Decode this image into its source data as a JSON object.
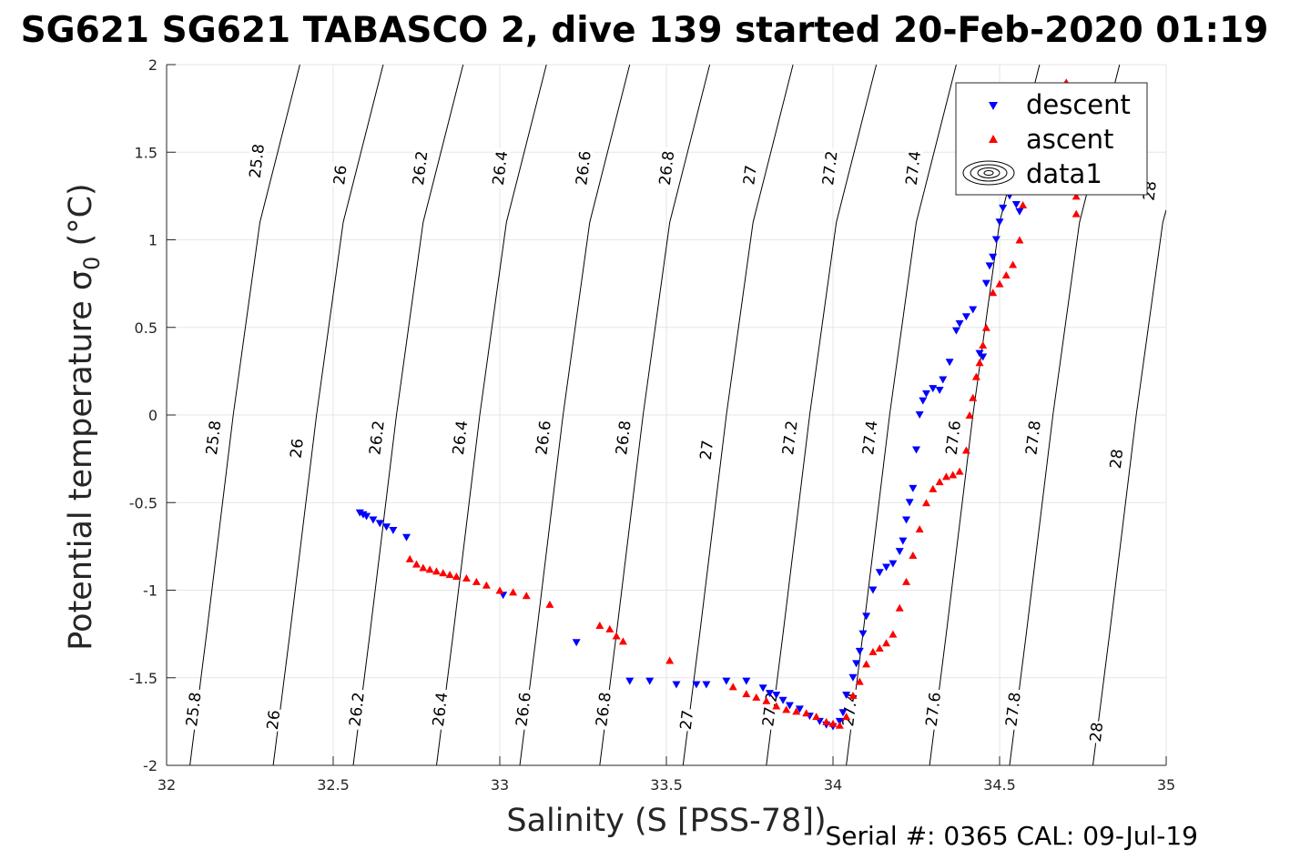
{
  "chart_data": {
    "type": "scatter",
    "title": "SG621 SG621 TABASCO 2, dive 139 started 20-Feb-2020 01:19",
    "xlabel": "Salinity (S [PSS-78])",
    "ylabel": "Potential temperature σ",
    "ylabel_sub": "0",
    "ylabel_unit": " (°C)",
    "xlim": [
      32,
      35
    ],
    "ylim": [
      -2,
      2
    ],
    "xticks": [
      32,
      32.5,
      33,
      33.5,
      34,
      34.5,
      35
    ],
    "xtick_labels": [
      "32",
      "32.5",
      "33",
      "33.5",
      "34",
      "34.5",
      "35"
    ],
    "yticks": [
      -2,
      -1.5,
      -1,
      -0.5,
      0,
      0.5,
      1,
      1.5,
      2
    ],
    "ytick_labels": [
      "-2",
      "-1.5",
      "-1",
      "-0.5",
      "0",
      "0.5",
      "1",
      "1.5",
      "2"
    ],
    "grid": true,
    "legend": {
      "placement": "top-right",
      "entries": [
        "descent",
        "ascent",
        "data1"
      ]
    },
    "footer": "Serial #: 0365  CAL: 09-Jul-19",
    "colors": {
      "descent": "#0000ff",
      "ascent": "#ff0000",
      "contour": "#000000",
      "grid": "#e5e5e5"
    },
    "density_contours": [
      {
        "level": "25.8",
        "points": [
          [
            32.07,
            -2
          ],
          [
            32.12,
            -1.25
          ],
          [
            32.2,
            0
          ],
          [
            32.28,
            1.1
          ],
          [
            32.4,
            2
          ]
        ]
      },
      {
        "level": "26",
        "points": [
          [
            32.32,
            -2
          ],
          [
            32.37,
            -1.25
          ],
          [
            32.45,
            0
          ],
          [
            32.53,
            1.1
          ],
          [
            32.65,
            2
          ]
        ]
      },
      {
        "level": "26.2",
        "points": [
          [
            32.56,
            -2
          ],
          [
            32.61,
            -1.25
          ],
          [
            32.69,
            0
          ],
          [
            32.77,
            1.1
          ],
          [
            32.89,
            2
          ]
        ]
      },
      {
        "level": "26.4",
        "points": [
          [
            32.81,
            -2
          ],
          [
            32.86,
            -1.25
          ],
          [
            32.94,
            0
          ],
          [
            33.02,
            1.1
          ],
          [
            33.14,
            2
          ]
        ]
      },
      {
        "level": "26.6",
        "points": [
          [
            33.06,
            -2
          ],
          [
            33.11,
            -1.25
          ],
          [
            33.19,
            0
          ],
          [
            33.27,
            1.1
          ],
          [
            33.39,
            2
          ]
        ]
      },
      {
        "level": "26.8",
        "points": [
          [
            33.3,
            -2
          ],
          [
            33.35,
            -1.25
          ],
          [
            33.43,
            0
          ],
          [
            33.51,
            1.1
          ],
          [
            33.63,
            2
          ]
        ]
      },
      {
        "level": "27",
        "points": [
          [
            33.55,
            -2
          ],
          [
            33.6,
            -1.25
          ],
          [
            33.68,
            0
          ],
          [
            33.76,
            1.1
          ],
          [
            33.88,
            2
          ]
        ]
      },
      {
        "level": "27.2",
        "points": [
          [
            33.8,
            -2
          ],
          [
            33.85,
            -1.25
          ],
          [
            33.93,
            0
          ],
          [
            34.01,
            1.1
          ],
          [
            34.13,
            2
          ]
        ]
      },
      {
        "level": "27.4",
        "points": [
          [
            34.04,
            -2
          ],
          [
            34.09,
            -1.25
          ],
          [
            34.17,
            0
          ],
          [
            34.25,
            1.1
          ],
          [
            34.37,
            2
          ]
        ]
      },
      {
        "level": "27.6",
        "points": [
          [
            34.29,
            -2
          ],
          [
            34.34,
            -1.25
          ],
          [
            34.42,
            0
          ],
          [
            34.5,
            1.1
          ],
          [
            34.62,
            2
          ]
        ]
      },
      {
        "level": "27.8",
        "points": [
          [
            34.53,
            -2
          ],
          [
            34.58,
            -1.25
          ],
          [
            34.66,
            0
          ],
          [
            34.74,
            1.1
          ],
          [
            34.86,
            2
          ]
        ]
      },
      {
        "level": "28",
        "points": [
          [
            34.78,
            -2
          ],
          [
            34.83,
            -1.25
          ],
          [
            34.91,
            0
          ],
          [
            34.99,
            1.1
          ],
          [
            35,
            1.17
          ]
        ]
      }
    ],
    "contour_labels": [
      {
        "text": "25.8",
        "x": 32.27,
        "y": 1.45
      },
      {
        "text": "26",
        "x": 32.52,
        "y": 1.37
      },
      {
        "text": "26.2",
        "x": 32.76,
        "y": 1.41
      },
      {
        "text": "26.4",
        "x": 33.0,
        "y": 1.41
      },
      {
        "text": "26.6",
        "x": 33.25,
        "y": 1.41
      },
      {
        "text": "26.8",
        "x": 33.5,
        "y": 1.41
      },
      {
        "text": "27",
        "x": 33.75,
        "y": 1.37
      },
      {
        "text": "27.2",
        "x": 33.99,
        "y": 1.41
      },
      {
        "text": "27.4",
        "x": 34.24,
        "y": 1.41
      },
      {
        "text": "28",
        "x": 34.95,
        "y": 1.28
      },
      {
        "text": "25.8",
        "x": 32.14,
        "y": -0.13
      },
      {
        "text": "26",
        "x": 32.39,
        "y": -0.19
      },
      {
        "text": "26.2",
        "x": 32.63,
        "y": -0.13
      },
      {
        "text": "26.4",
        "x": 32.88,
        "y": -0.13
      },
      {
        "text": "26.6",
        "x": 33.13,
        "y": -0.13
      },
      {
        "text": "26.8",
        "x": 33.37,
        "y": -0.13
      },
      {
        "text": "27",
        "x": 33.62,
        "y": -0.2
      },
      {
        "text": "27.2",
        "x": 33.87,
        "y": -0.13
      },
      {
        "text": "27.4",
        "x": 34.11,
        "y": -0.13
      },
      {
        "text": "27.6",
        "x": 34.36,
        "y": -0.13
      },
      {
        "text": "27.8",
        "x": 34.6,
        "y": -0.13
      },
      {
        "text": "28",
        "x": 34.85,
        "y": -0.25
      },
      {
        "text": "25.8",
        "x": 32.08,
        "y": -1.68
      },
      {
        "text": "26",
        "x": 32.32,
        "y": -1.74
      },
      {
        "text": "26.2",
        "x": 32.57,
        "y": -1.68
      },
      {
        "text": "26.4",
        "x": 32.82,
        "y": -1.68
      },
      {
        "text": "26.6",
        "x": 33.07,
        "y": -1.68
      },
      {
        "text": "26.8",
        "x": 33.31,
        "y": -1.68
      },
      {
        "text": "27",
        "x": 33.56,
        "y": -1.74
      },
      {
        "text": "27.2",
        "x": 33.81,
        "y": -1.68
      },
      {
        "text": "27.4",
        "x": 34.05,
        "y": -1.68
      },
      {
        "text": "27.6",
        "x": 34.3,
        "y": -1.68
      },
      {
        "text": "27.8",
        "x": 34.54,
        "y": -1.68
      },
      {
        "text": "28",
        "x": 34.79,
        "y": -1.81
      }
    ],
    "series": [
      {
        "name": "descent",
        "marker": "triangle-down",
        "points": [
          [
            32.58,
            -0.56
          ],
          [
            32.59,
            -0.57
          ],
          [
            32.6,
            -0.58
          ],
          [
            32.62,
            -0.6
          ],
          [
            32.64,
            -0.62
          ],
          [
            32.66,
            -0.64
          ],
          [
            32.68,
            -0.66
          ],
          [
            32.72,
            -0.7
          ],
          [
            33.01,
            -1.03
          ],
          [
            33.23,
            -1.3
          ],
          [
            33.39,
            -1.52
          ],
          [
            33.45,
            -1.52
          ],
          [
            33.53,
            -1.54
          ],
          [
            33.59,
            -1.54
          ],
          [
            33.62,
            -1.54
          ],
          [
            33.68,
            -1.52
          ],
          [
            33.74,
            -1.52
          ],
          [
            33.79,
            -1.56
          ],
          [
            33.81,
            -1.59
          ],
          [
            33.83,
            -1.6
          ],
          [
            33.85,
            -1.63
          ],
          [
            33.87,
            -1.66
          ],
          [
            33.9,
            -1.68
          ],
          [
            33.93,
            -1.72
          ],
          [
            33.96,
            -1.75
          ],
          [
            33.98,
            -1.77
          ],
          [
            34.0,
            -1.78
          ],
          [
            34.02,
            -1.75
          ],
          [
            34.03,
            -1.7
          ],
          [
            34.04,
            -1.6
          ],
          [
            34.06,
            -1.5
          ],
          [
            34.07,
            -1.42
          ],
          [
            34.08,
            -1.35
          ],
          [
            34.09,
            -1.25
          ],
          [
            34.1,
            -1.15
          ],
          [
            34.12,
            -1.0
          ],
          [
            34.14,
            -0.9
          ],
          [
            34.16,
            -0.87
          ],
          [
            34.18,
            -0.85
          ],
          [
            34.2,
            -0.78
          ],
          [
            34.21,
            -0.72
          ],
          [
            34.22,
            -0.6
          ],
          [
            34.23,
            -0.5
          ],
          [
            34.24,
            -0.42
          ],
          [
            34.25,
            -0.2
          ],
          [
            34.26,
            0.0
          ],
          [
            34.27,
            0.08
          ],
          [
            34.28,
            0.12
          ],
          [
            34.3,
            0.15
          ],
          [
            34.32,
            0.14
          ],
          [
            34.33,
            0.2
          ],
          [
            34.35,
            0.3
          ],
          [
            34.37,
            0.48
          ],
          [
            34.38,
            0.52
          ],
          [
            34.4,
            0.56
          ],
          [
            34.42,
            0.6
          ],
          [
            34.44,
            0.35
          ],
          [
            34.45,
            0.33
          ],
          [
            34.46,
            0.75
          ],
          [
            34.47,
            0.85
          ],
          [
            34.48,
            0.9
          ],
          [
            34.49,
            1.0
          ],
          [
            34.5,
            1.1
          ],
          [
            34.51,
            1.18
          ],
          [
            34.53,
            1.25
          ],
          [
            34.55,
            1.2
          ],
          [
            34.56,
            1.16
          ]
        ]
      },
      {
        "name": "ascent",
        "marker": "triangle-up",
        "points": [
          [
            32.73,
            -0.82
          ],
          [
            32.75,
            -0.85
          ],
          [
            32.77,
            -0.87
          ],
          [
            32.79,
            -0.88
          ],
          [
            32.81,
            -0.89
          ],
          [
            32.83,
            -0.9
          ],
          [
            32.85,
            -0.91
          ],
          [
            32.87,
            -0.92
          ],
          [
            32.9,
            -0.93
          ],
          [
            32.93,
            -0.95
          ],
          [
            32.96,
            -0.97
          ],
          [
            33.0,
            -1.0
          ],
          [
            33.04,
            -1.01
          ],
          [
            33.08,
            -1.03
          ],
          [
            33.15,
            -1.08
          ],
          [
            33.3,
            -1.2
          ],
          [
            33.33,
            -1.22
          ],
          [
            33.35,
            -1.26
          ],
          [
            33.37,
            -1.29
          ],
          [
            33.51,
            -1.4
          ],
          [
            33.7,
            -1.55
          ],
          [
            33.74,
            -1.59
          ],
          [
            33.77,
            -1.61
          ],
          [
            33.8,
            -1.63
          ],
          [
            33.83,
            -1.66
          ],
          [
            33.86,
            -1.68
          ],
          [
            33.89,
            -1.69
          ],
          [
            33.92,
            -1.7
          ],
          [
            33.95,
            -1.72
          ],
          [
            33.98,
            -1.75
          ],
          [
            34.0,
            -1.76
          ],
          [
            34.02,
            -1.77
          ],
          [
            34.04,
            -1.72
          ],
          [
            34.06,
            -1.6
          ],
          [
            34.08,
            -1.52
          ],
          [
            34.1,
            -1.42
          ],
          [
            34.12,
            -1.35
          ],
          [
            34.14,
            -1.33
          ],
          [
            34.16,
            -1.3
          ],
          [
            34.18,
            -1.25
          ],
          [
            34.2,
            -1.1
          ],
          [
            34.22,
            -0.95
          ],
          [
            34.24,
            -0.8
          ],
          [
            34.26,
            -0.65
          ],
          [
            34.28,
            -0.5
          ],
          [
            34.3,
            -0.42
          ],
          [
            34.32,
            -0.38
          ],
          [
            34.34,
            -0.35
          ],
          [
            34.36,
            -0.34
          ],
          [
            34.38,
            -0.32
          ],
          [
            34.4,
            -0.2
          ],
          [
            34.41,
            0.0
          ],
          [
            34.42,
            0.1
          ],
          [
            34.43,
            0.22
          ],
          [
            34.44,
            0.3
          ],
          [
            34.45,
            0.4
          ],
          [
            34.46,
            0.5
          ],
          [
            34.48,
            0.7
          ],
          [
            34.5,
            0.75
          ],
          [
            34.52,
            0.8
          ],
          [
            34.54,
            0.86
          ],
          [
            34.56,
            1.0
          ],
          [
            34.57,
            1.2
          ],
          [
            34.7,
            1.9
          ],
          [
            34.71,
            1.6
          ],
          [
            34.72,
            1.4
          ],
          [
            34.73,
            1.25
          ],
          [
            34.73,
            1.15
          ]
        ]
      }
    ]
  }
}
